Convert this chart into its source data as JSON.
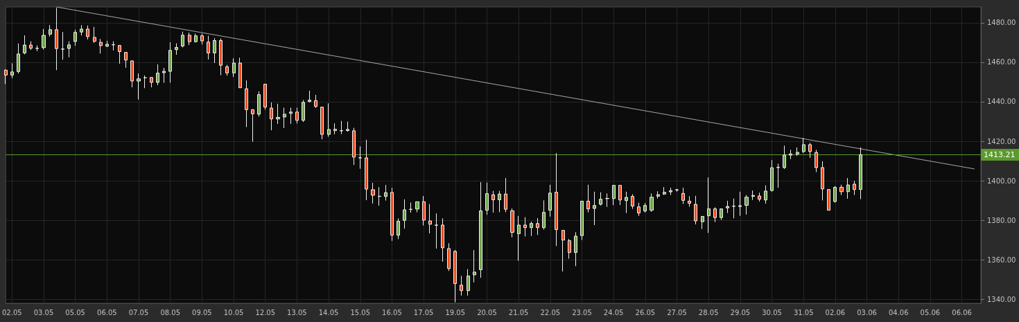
{
  "chart_data": {
    "type": "candlestick",
    "categories": [
      null,
      "02.05",
      null,
      null,
      null,
      null,
      "03.05",
      null,
      null,
      null,
      null,
      "05.05",
      null,
      null,
      null,
      null,
      "06.05",
      null,
      null,
      null,
      null,
      "07.05",
      null,
      null,
      null,
      null,
      "08.05",
      null,
      null,
      null,
      null,
      "09.05",
      null,
      null,
      null,
      null,
      "10.05",
      null,
      null,
      null,
      null,
      "12.05",
      null,
      null,
      null,
      null,
      "13.05",
      null,
      null,
      null,
      null,
      "14.05",
      null,
      null,
      null,
      null,
      "15.05",
      null,
      null,
      null,
      null,
      "16.05",
      null,
      null,
      null,
      null,
      "17.05",
      null,
      null,
      null,
      null,
      "19.05",
      null,
      null,
      null,
      null,
      "20.05",
      null,
      null,
      null,
      null,
      "21.05",
      null,
      null,
      null,
      null,
      "22.05",
      null,
      null,
      null,
      null,
      "23.05",
      null,
      null,
      null,
      null,
      "24.05",
      null,
      null,
      null,
      null,
      "26.05",
      null,
      null,
      null,
      null,
      "27.05",
      null,
      null,
      null,
      null,
      "28.05",
      null,
      null,
      null,
      null,
      "29.05",
      null,
      null,
      null,
      null,
      "30.05",
      null,
      null,
      null,
      null,
      "31.05",
      null,
      null,
      null,
      null,
      "02.06",
      null,
      null,
      null,
      null,
      "03.06",
      null,
      null,
      null,
      null,
      "04.06",
      null,
      null,
      null,
      null,
      "05.06",
      null,
      null,
      null,
      null,
      "06.06",
      null,
      null,
      null
    ],
    "ohlc": [
      [
        1456.0,
        1456.5,
        1449.0,
        1453.5
      ],
      [
        1453.5,
        1459.5,
        1451.9,
        1455.1
      ],
      [
        1455.3,
        1469.5,
        1454.3,
        1464.2
      ],
      [
        1464.7,
        1473.6,
        1464.0,
        1468.7
      ],
      [
        1468.7,
        1470.6,
        1466.2,
        1467.1
      ],
      [
        1467.0,
        1468.5,
        1465.6,
        1467.1
      ],
      [
        1467.4,
        1476.8,
        1466.5,
        1473.6
      ],
      [
        1474.2,
        1478.8,
        1473.0,
        1476.5
      ],
      [
        1476.5,
        1487.5,
        1456.0,
        1466.9
      ],
      [
        1466.7,
        1475.3,
        1461.3,
        1466.6
      ],
      [
        1467.0,
        1470.6,
        1462.5,
        1468.8
      ],
      [
        1470.5,
        1476.5,
        1468.3,
        1475.1
      ],
      [
        1475.3,
        1478.8,
        1473.6,
        1476.8
      ],
      [
        1476.8,
        1478.6,
        1471.5,
        1473.0
      ],
      [
        1472.6,
        1477.9,
        1469.8,
        1470.6
      ],
      [
        1470.1,
        1471.8,
        1464.4,
        1468.4
      ],
      [
        1468.1,
        1470.9,
        1467.7,
        1469.1
      ],
      [
        1468.9,
        1470.6,
        1466.0,
        1468.8
      ],
      [
        1468.5,
        1468.6,
        1459.3,
        1465.4
      ],
      [
        1465.0,
        1465.1,
        1457.2,
        1461.1
      ],
      [
        1460.7,
        1460.8,
        1447.3,
        1450.5
      ],
      [
        1450.5,
        1454.3,
        1441.1,
        1451.6
      ],
      [
        1452.1,
        1453.3,
        1446.9,
        1452.2
      ],
      [
        1452.3,
        1452.4,
        1447.3,
        1449.8
      ],
      [
        1449.8,
        1458.9,
        1448.4,
        1454.5
      ],
      [
        1454.7,
        1457.2,
        1449.6,
        1455.4
      ],
      [
        1455.4,
        1470.1,
        1449.6,
        1466.0
      ],
      [
        1466.4,
        1469.6,
        1463.8,
        1467.5
      ],
      [
        1468.2,
        1475.5,
        1467.5,
        1473.7
      ],
      [
        1473.7,
        1475.0,
        1468.7,
        1470.4
      ],
      [
        1470.4,
        1474.5,
        1470.0,
        1473.4
      ],
      [
        1473.4,
        1474.5,
        1469.0,
        1470.8
      ],
      [
        1470.2,
        1473.4,
        1461.4,
        1464.7
      ],
      [
        1464.7,
        1472.2,
        1459.6,
        1471.0
      ],
      [
        1471.0,
        1472.0,
        1453.4,
        1458.5
      ],
      [
        1457.7,
        1458.7,
        1453.2,
        1454.6
      ],
      [
        1454.6,
        1462.0,
        1452.6,
        1459.6
      ],
      [
        1459.6,
        1462.3,
        1447.0,
        1447.1
      ],
      [
        1446.6,
        1450.8,
        1427.2,
        1436.0
      ],
      [
        1436.0,
        1436.2,
        1419.8,
        1433.9
      ],
      [
        1433.7,
        1445.3,
        1432.5,
        1443.6
      ],
      [
        1448.9,
        1449.0,
        1436.0,
        1437.3
      ],
      [
        1436.8,
        1439.7,
        1425.6,
        1431.3
      ],
      [
        1431.3,
        1439.0,
        1428.8,
        1432.1
      ],
      [
        1432.3,
        1437.0,
        1426.7,
        1433.7
      ],
      [
        1434.1,
        1437.0,
        1428.8,
        1434.8
      ],
      [
        1434.8,
        1437.0,
        1429.0,
        1430.6
      ],
      [
        1430.6,
        1440.9,
        1429.8,
        1439.7
      ],
      [
        1440.1,
        1445.6,
        1439.7,
        1440.8
      ],
      [
        1440.6,
        1443.5,
        1436.9,
        1437.6
      ],
      [
        1437.3,
        1437.3,
        1421.0,
        1423.5
      ],
      [
        1423.5,
        1439.2,
        1422.3,
        1426.0
      ],
      [
        1426.1,
        1429.1,
        1423.6,
        1425.4
      ],
      [
        1425.4,
        1430.3,
        1423.6,
        1425.3
      ],
      [
        1425.4,
        1429.9,
        1424.9,
        1426.0
      ],
      [
        1425.3,
        1426.8,
        1408.0,
        1412.0
      ],
      [
        1411.7,
        1417.4,
        1406.1,
        1411.6
      ],
      [
        1411.6,
        1420.8,
        1390.2,
        1395.8
      ],
      [
        1395.5,
        1399.0,
        1388.5,
        1392.7
      ],
      [
        1392.2,
        1396.8,
        1387.4,
        1392.1
      ],
      [
        1392.1,
        1397.9,
        1390.0,
        1394.0
      ],
      [
        1394.1,
        1396.5,
        1369.6,
        1372.5
      ],
      [
        1372.5,
        1381.0,
        1370.5,
        1379.5
      ],
      [
        1380.0,
        1390.6,
        1375.8,
        1385.3
      ],
      [
        1385.5,
        1389.0,
        1383.9,
        1385.6
      ],
      [
        1385.7,
        1389.5,
        1384.1,
        1389.4
      ],
      [
        1389.4,
        1392.3,
        1377.4,
        1380.1
      ],
      [
        1379.7,
        1388.2,
        1373.4,
        1378.0
      ],
      [
        1377.6,
        1383.5,
        1365.7,
        1377.5
      ],
      [
        1377.6,
        1381.0,
        1359.1,
        1366.1
      ],
      [
        1365.7,
        1368.4,
        1354.4,
        1355.6
      ],
      [
        1364.3,
        1364.9,
        1338.5,
        1348.0
      ],
      [
        1347.2,
        1351.9,
        1341.9,
        1344.4
      ],
      [
        1344.4,
        1355.3,
        1341.9,
        1351.8
      ],
      [
        1352.4,
        1364.9,
        1348.6,
        1353.8
      ],
      [
        1355.0,
        1399.3,
        1350.9,
        1384.8
      ],
      [
        1385.1,
        1399.1,
        1382.8,
        1393.5
      ],
      [
        1392.9,
        1394.9,
        1383.9,
        1390.4
      ],
      [
        1390.4,
        1394.9,
        1384.1,
        1393.3
      ],
      [
        1393.3,
        1401.4,
        1384.1,
        1385.6
      ],
      [
        1384.8,
        1386.0,
        1371.4,
        1373.9
      ],
      [
        1373.2,
        1382.2,
        1359.5,
        1377.6
      ],
      [
        1377.6,
        1381.6,
        1371.8,
        1376.3
      ],
      [
        1376.3,
        1379.3,
        1372.1,
        1378.4
      ],
      [
        1378.4,
        1381.1,
        1372.6,
        1376.3
      ],
      [
        1376.3,
        1390.1,
        1375.3,
        1384.0
      ],
      [
        1385.1,
        1398.0,
        1381.9,
        1393.8
      ],
      [
        1394.2,
        1414.0,
        1367.0,
        1375.3
      ],
      [
        1374.9,
        1375.0,
        1354.1,
        1370.0
      ],
      [
        1369.7,
        1370.6,
        1360.6,
        1363.7
      ],
      [
        1363.7,
        1374.0,
        1356.8,
        1372.0
      ],
      [
        1372.3,
        1389.7,
        1370.0,
        1389.7
      ],
      [
        1389.7,
        1398.0,
        1384.0,
        1385.8
      ],
      [
        1386.0,
        1394.5,
        1377.6,
        1387.5
      ],
      [
        1388.1,
        1394.2,
        1387.5,
        1390.7
      ],
      [
        1391.0,
        1393.6,
        1386.8,
        1391.1
      ],
      [
        1391.0,
        1397.7,
        1387.7,
        1397.7
      ],
      [
        1397.7,
        1397.7,
        1387.7,
        1390.3
      ],
      [
        1390.0,
        1394.5,
        1383.7,
        1391.6
      ],
      [
        1392.1,
        1393.2,
        1385.8,
        1387.2
      ],
      [
        1386.8,
        1388.9,
        1382.2,
        1383.7
      ],
      [
        1384.7,
        1388.7,
        1384.0,
        1387.5
      ],
      [
        1385.1,
        1393.6,
        1384.3,
        1391.7
      ],
      [
        1392.2,
        1394.7,
        1391.0,
        1393.0
      ],
      [
        1393.3,
        1396.8,
        1392.8,
        1394.2
      ],
      [
        1394.4,
        1396.5,
        1392.8,
        1395.0
      ],
      [
        1395.3,
        1395.9,
        1394.5,
        1395.5
      ],
      [
        1393.6,
        1396.5,
        1388.3,
        1390.1
      ],
      [
        1389.7,
        1392.2,
        1386.9,
        1388.6
      ],
      [
        1388.1,
        1392.4,
        1377.9,
        1379.7
      ],
      [
        1379.3,
        1382.0,
        1375.6,
        1382.0
      ],
      [
        1382.3,
        1401.7,
        1373.6,
        1385.8
      ],
      [
        1385.8,
        1386.6,
        1379.1,
        1381.4
      ],
      [
        1381.4,
        1385.8,
        1380.2,
        1385.8
      ],
      [
        1386.3,
        1389.9,
        1383.7,
        1387.0
      ],
      [
        1387.1,
        1391.0,
        1381.0,
        1387.2
      ],
      [
        1387.0,
        1394.5,
        1382.3,
        1387.4
      ],
      [
        1387.6,
        1392.8,
        1382.9,
        1391.7
      ],
      [
        1392.1,
        1395.1,
        1390.3,
        1392.6
      ],
      [
        1392.3,
        1394.0,
        1389.5,
        1390.7
      ],
      [
        1390.3,
        1397.7,
        1388.4,
        1394.8
      ],
      [
        1395.1,
        1410.5,
        1394.5,
        1406.6
      ],
      [
        1406.7,
        1408.7,
        1396.5,
        1406.8
      ],
      [
        1406.7,
        1417.8,
        1406.0,
        1413.0
      ],
      [
        1413.0,
        1415.7,
        1411.0,
        1413.6
      ],
      [
        1413.6,
        1416.9,
        1412.6,
        1414.4
      ],
      [
        1414.8,
        1421.7,
        1414.0,
        1418.3
      ],
      [
        1418.3,
        1419.2,
        1411.6,
        1414.8
      ],
      [
        1414.3,
        1415.7,
        1404.4,
        1406.7
      ],
      [
        1406.7,
        1409.9,
        1390.1,
        1395.9
      ],
      [
        1395.6,
        1395.6,
        1385.1,
        1385.1
      ],
      [
        1389.5,
        1397.3,
        1389.0,
        1396.7
      ],
      [
        1396.7,
        1398.0,
        1392.8,
        1394.5
      ],
      [
        1394.5,
        1401.4,
        1390.9,
        1397.9
      ],
      [
        1398.3,
        1400.0,
        1392.8,
        1395.6
      ],
      [
        1395.6,
        1416.9,
        1390.7,
        1413.2
      ],
      null,
      null,
      null,
      null,
      null,
      null,
      null,
      null,
      null,
      null,
      null,
      null,
      null,
      null,
      null,
      null,
      null,
      null,
      null
    ],
    "colors": [
      "#f04b1c",
      "#6fa84b",
      "#6fa84b",
      "#6fa84b",
      "#f04b1c",
      "#6fa84b",
      "#6fa84b",
      "#6fa84b",
      "#f04b1c",
      "#f04b1c",
      "#6fa84b",
      "#6fa84b",
      "#6fa84b",
      "#f04b1c",
      "#f04b1c",
      "#f04b1c",
      "#6fa84b",
      "#f04b1c",
      "#f04b1c",
      "#f04b1c",
      "#f04b1c",
      "#6fa84b",
      "#6fa84b",
      "#f04b1c",
      "#6fa84b",
      "#6fa84b",
      "#6fa84b",
      "#6fa84b",
      "#6fa84b",
      "#f04b1c",
      "#6fa84b",
      "#f04b1c",
      "#f04b1c",
      "#6fa84b",
      "#f04b1c",
      "#f04b1c",
      "#6fa84b",
      "#f04b1c",
      "#f04b1c",
      "#f04b1c",
      "#6fa84b",
      "#f04b1c",
      "#f04b1c",
      "#6fa84b",
      "#6fa84b",
      "#6fa84b",
      "#f04b1c",
      "#6fa84b",
      "#6fa84b",
      "#f04b1c",
      "#f04b1c",
      "#6fa84b",
      "#f04b1c",
      "#f04b1c",
      "#6fa84b",
      "#f04b1c",
      "#f04b1c",
      "#f04b1c",
      "#f04b1c",
      "#f04b1c",
      "#6fa84b",
      "#f04b1c",
      "#6fa84b",
      "#6fa84b",
      "#6fa84b",
      "#6fa84b",
      "#f04b1c",
      "#f04b1c",
      "#f04b1c",
      "#f04b1c",
      "#f04b1c",
      "#f04b1c",
      "#f04b1c",
      "#6fa84b",
      "#6fa84b",
      "#6fa84b",
      "#6fa84b",
      "#f04b1c",
      "#6fa84b",
      "#f04b1c",
      "#f04b1c",
      "#6fa84b",
      "#f04b1c",
      "#6fa84b",
      "#f04b1c",
      "#6fa84b",
      "#6fa84b",
      "#f04b1c",
      "#f04b1c",
      "#f04b1c",
      "#6fa84b",
      "#6fa84b",
      "#f04b1c",
      "#6fa84b",
      "#6fa84b",
      "#6fa84b",
      "#6fa84b",
      "#f04b1c",
      "#6fa84b",
      "#f04b1c",
      "#f04b1c",
      "#6fa84b",
      "#6fa84b",
      "#6fa84b",
      "#6fa84b",
      "#6fa84b",
      "#6fa84b",
      "#f04b1c",
      "#f04b1c",
      "#f04b1c",
      "#6fa84b",
      "#6fa84b",
      "#f04b1c",
      "#6fa84b",
      "#6fa84b",
      "#6fa84b",
      "#6fa84b",
      "#6fa84b",
      "#6fa84b",
      "#f04b1c",
      "#6fa84b",
      "#6fa84b",
      "#6fa84b",
      "#6fa84b",
      "#6fa84b",
      "#6fa84b",
      "#6fa84b",
      "#f04b1c",
      "#f04b1c",
      "#f04b1c",
      "#f04b1c",
      "#6fa84b",
      "#f04b1c",
      "#6fa84b",
      "#f04b1c",
      "#6fa84b",
      null,
      null,
      null,
      null,
      null,
      null,
      null,
      null,
      null,
      null,
      null,
      null,
      null,
      null,
      null,
      null,
      null,
      null,
      null
    ],
    "series": [
      {
        "type": "line",
        "color": "#a8a8a8",
        "values": [
          null,
          null,
          null,
          null,
          null,
          null,
          null,
          null,
          1488,
          null,
          null,
          null,
          null,
          null,
          null,
          null,
          null,
          null,
          null,
          null,
          null,
          null,
          null,
          null,
          null,
          null,
          null,
          null,
          null,
          null,
          null,
          null,
          null,
          null,
          null,
          null,
          null,
          null,
          null,
          null,
          null,
          null,
          null,
          null,
          null,
          null,
          null,
          null,
          null,
          null,
          null,
          null,
          null,
          null,
          null,
          null,
          null,
          null,
          null,
          null,
          null,
          null,
          null,
          null,
          null,
          null,
          null,
          null,
          null,
          null,
          null,
          null,
          null,
          null,
          null,
          null,
          null,
          null,
          null,
          null,
          null,
          null,
          null,
          null,
          null,
          null,
          null,
          null,
          null,
          null,
          null,
          null,
          null,
          null,
          null,
          null,
          null,
          null,
          null,
          null,
          null,
          null,
          null,
          null,
          null,
          null,
          null,
          null,
          null,
          null,
          null,
          null,
          null,
          null,
          null,
          null,
          null,
          null,
          null,
          null,
          null,
          null,
          null,
          null,
          null,
          null,
          null,
          null,
          null,
          null,
          null,
          null,
          null,
          null,
          null,
          null,
          null,
          null,
          null,
          null,
          null,
          null,
          null,
          null,
          null,
          null,
          null,
          null,
          null,
          null,
          null,
          null,
          null,
          1406,
          null
        ]
      }
    ],
    "ref_lines": [
      {
        "axis": "y",
        "value": 1413.21,
        "label": "1413.21",
        "color": "#5b9a2c"
      }
    ],
    "ylim": [
      1338,
      1488
    ],
    "yticks": [
      {
        "value": 1340,
        "label": "1340.00"
      },
      {
        "value": 1360,
        "label": "1360.00"
      },
      {
        "value": 1380,
        "label": "1380.00"
      },
      {
        "value": 1400,
        "label": "1400.00"
      },
      {
        "value": 1420,
        "label": "1420.00"
      },
      {
        "value": 1440,
        "label": "1440.00"
      },
      {
        "value": 1460,
        "label": "1460.00"
      },
      {
        "value": 1480,
        "label": "1480.00"
      }
    ],
    "grid": true
  }
}
